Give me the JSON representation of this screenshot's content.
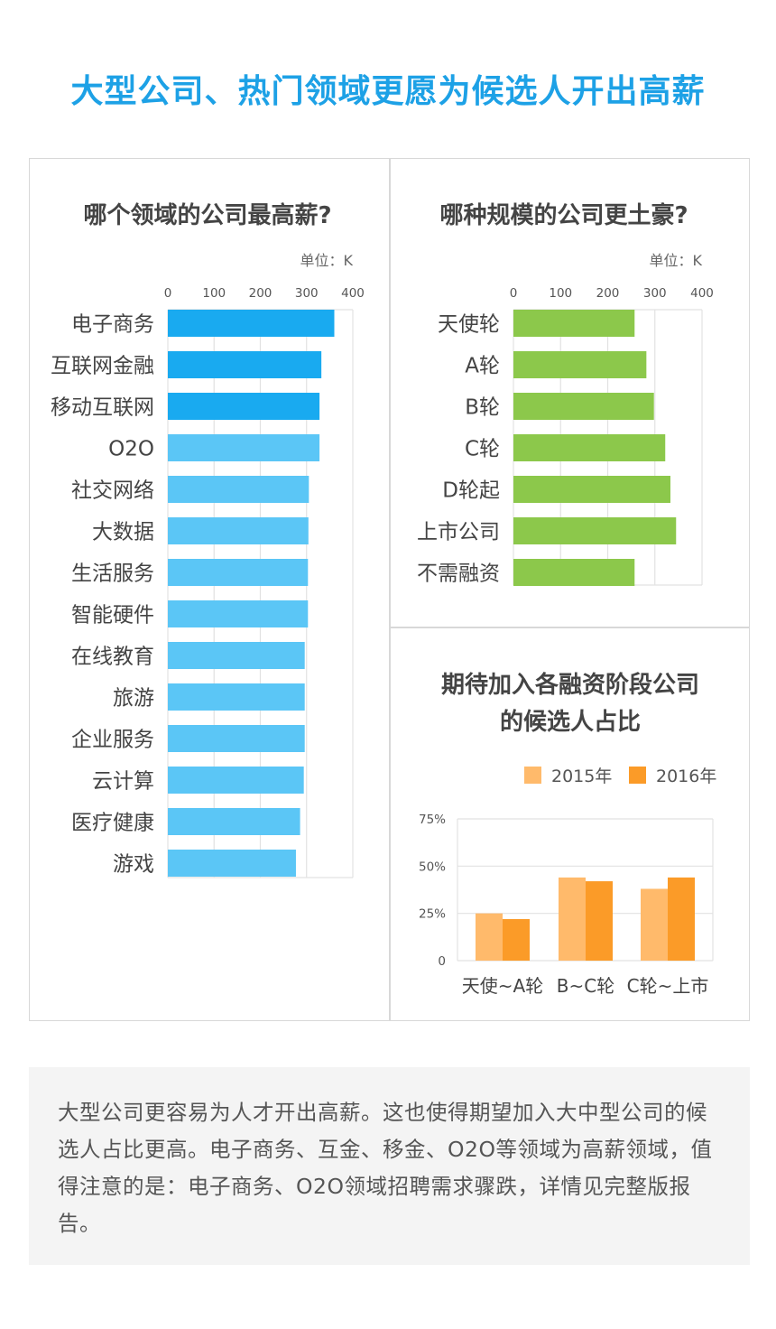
{
  "title": "大型公司、热门领域更愿为候选人开出高薪",
  "colors": {
    "title": "#1da1e6",
    "bar_dark_blue": "#19aaf0",
    "bar_light_blue": "#5bc6f6",
    "bar_green": "#8cc84b",
    "bar_2015": "#ffba6b",
    "bar_2016": "#fb9b28"
  },
  "chart_data": [
    {
      "type": "bar",
      "orientation": "horizontal",
      "title": "哪个领域的公司最高薪?",
      "unit": "单位：K",
      "ticks": [
        "0",
        "100",
        "200",
        "300",
        "400"
      ],
      "xlim": [
        0,
        400
      ],
      "grid": true,
      "categories": [
        "电子商务",
        "互联网金融",
        "移动互联网",
        "O2O",
        "社交网络",
        "大数据",
        "生活服务",
        "智能硬件",
        "在线教育",
        "旅游",
        "企业服务",
        "云计算",
        "医疗健康",
        "游戏"
      ],
      "values": [
        360,
        332,
        328,
        328,
        305,
        304,
        303,
        303,
        296,
        296,
        296,
        294,
        286,
        277
      ],
      "highlight": [
        true,
        true,
        true,
        false,
        false,
        false,
        false,
        false,
        false,
        false,
        false,
        false,
        false,
        false
      ]
    },
    {
      "type": "bar",
      "orientation": "horizontal",
      "title": "哪种规模的公司更土豪?",
      "unit": "单位：K",
      "ticks": [
        "0",
        "100",
        "200",
        "300",
        "400"
      ],
      "xlim": [
        0,
        400
      ],
      "grid": true,
      "categories": [
        "天使轮",
        "A轮",
        "B轮",
        "C轮",
        "D轮起",
        "上市公司",
        "不需融资"
      ],
      "values": [
        257,
        282,
        298,
        322,
        333,
        345,
        257
      ]
    },
    {
      "type": "bar",
      "title": "期待加入各融资阶段公司的候选人占比",
      "title_lines": [
        "期待加入各融资阶段公司",
        "的候选人占比"
      ],
      "categories": [
        "天使~A轮",
        "B~C轮",
        "C轮~上市"
      ],
      "ticks": [
        "75%",
        "50%",
        "25%",
        "0"
      ],
      "ylim": [
        0,
        75
      ],
      "grid": true,
      "legend_position": "top-right",
      "series": [
        {
          "name": "2015年",
          "values": [
            25,
            44,
            38
          ]
        },
        {
          "name": "2016年",
          "values": [
            22,
            42,
            44
          ]
        }
      ]
    }
  ],
  "note": "大型公司更容易为人才开出高薪。这也使得期望加入大中型公司的候选人占比更高。电子商务、互金、移金、O2O等领域为高薪领域，值得注意的是：电子商务、O2O领域招聘需求骤跌，详情见完整版报告。"
}
